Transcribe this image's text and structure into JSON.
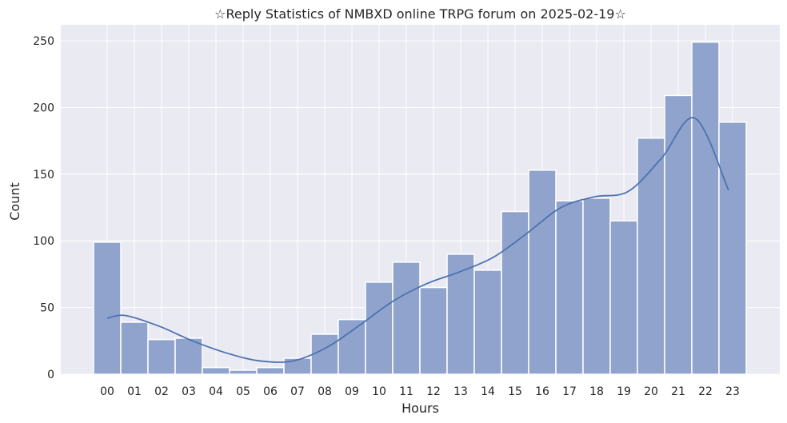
{
  "chart_data": {
    "type": "bar",
    "title": "☆Reply Statistics of NMBXD online TRPG forum on 2025-02-19☆",
    "xlabel": "Hours",
    "ylabel": "Count",
    "categories": [
      "00",
      "01",
      "02",
      "03",
      "04",
      "05",
      "06",
      "07",
      "08",
      "09",
      "10",
      "11",
      "12",
      "13",
      "14",
      "15",
      "16",
      "17",
      "18",
      "19",
      "20",
      "21",
      "22",
      "23"
    ],
    "values": [
      99,
      39,
      26,
      27,
      5,
      3,
      5,
      12,
      30,
      41,
      69,
      84,
      65,
      90,
      78,
      122,
      153,
      130,
      132,
      115,
      177,
      209,
      249,
      189
    ],
    "kde": [
      42,
      44,
      36,
      25,
      16,
      10,
      10,
      20,
      37,
      55,
      68,
      77,
      88,
      106,
      125,
      133,
      137,
      162,
      192,
      138
    ],
    "kde_x": [
      0.35,
      0.9,
      1.9,
      2.9,
      3.9,
      4.9,
      5.9,
      6.9,
      7.9,
      8.9,
      9.9,
      10.9,
      11.9,
      12.9,
      13.9,
      14.9,
      15.9,
      16.9,
      17.9,
      18.9
    ],
    "ylim": [
      0,
      262
    ],
    "yticks": [
      0,
      50,
      100,
      150,
      200,
      250
    ],
    "grid": true,
    "colors": {
      "bar_fill": "#8fa3cc",
      "bar_edge": "#ffffff",
      "kde_line": "#4c72b0",
      "plot_bg": "#eaeaf2",
      "grid": "#ffffff"
    }
  }
}
